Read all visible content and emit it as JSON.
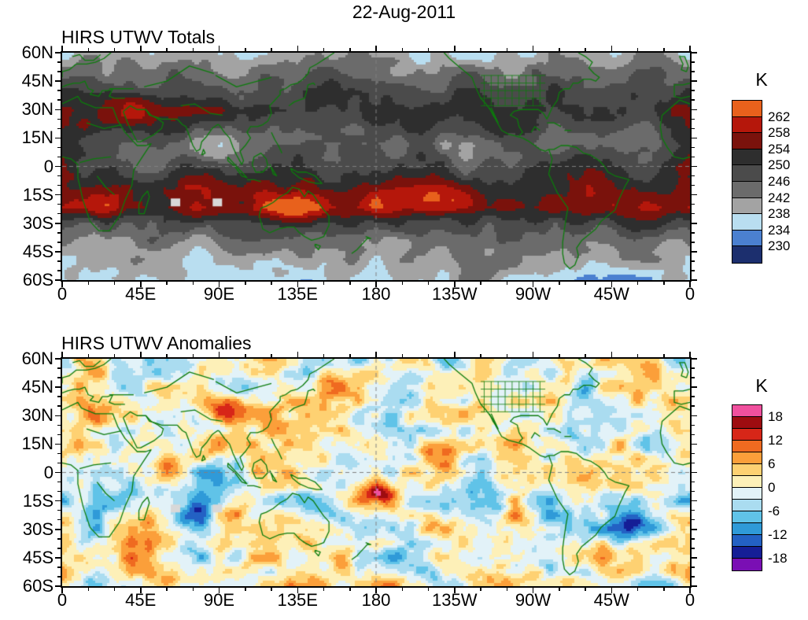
{
  "figure": {
    "date_title": "22-Aug-2011"
  },
  "map_style": {
    "coastline_color": "#0c7c0c",
    "refline_color": "#808080",
    "missing_color": "#d8d8d8",
    "frame_color": "#000000",
    "background": "#ffffff",
    "text_color": "#000000"
  },
  "chart_data": [
    {
      "type": "heatmap",
      "title": "HIRS UTWV Totals",
      "units": "K",
      "x_tick_labels": [
        "0",
        "45E",
        "90E",
        "135E",
        "180",
        "135W",
        "90W",
        "45W",
        "0"
      ],
      "y_tick_labels": [
        "60N",
        "45N",
        "30N",
        "15N",
        "0",
        "15S",
        "30S",
        "45S",
        "60S"
      ],
      "lon_range_deg_east": [
        0,
        360
      ],
      "lat_range": [
        60,
        -60
      ],
      "quant_levels_desc": [
        262,
        258,
        254,
        250,
        246,
        242,
        238,
        234,
        230
      ],
      "colorbar": {
        "label": "K",
        "tick_labels": [
          "262",
          "258",
          "254",
          "250",
          "246",
          "242",
          "238",
          "234",
          "230"
        ],
        "tick_boundary_indices": [
          1,
          2,
          3,
          4,
          5,
          6,
          7,
          8,
          9
        ],
        "box_colors_top_to_bottom": [
          "#e8611c",
          "#b5170b",
          "#7a120c",
          "#2e2e2e",
          "#4b4b4b",
          "#6b6b6b",
          "#a3a3a3",
          "#b9def0",
          "#4b80d0",
          "#1c2f6e"
        ]
      },
      "reference_lines": {
        "equator_lat": 0,
        "dateline_lon": 180,
        "style": "dashed"
      },
      "missing_data_cells_lonlat": [
        [
          65,
          -19
        ],
        [
          89,
          -19
        ]
      ],
      "field_summary": "Mid-range gray brightness temperatures dominate; warm red/orange bands (>254 K) over North Africa / Middle East near 30N and across the southern subtropics near 15S-25S including Australia; cool blue patches (<238 K) at high latitudes and scattered in the tropics."
    },
    {
      "type": "heatmap",
      "title": "HIRS UTWV Anomalies",
      "units": "K",
      "x_tick_labels": [
        "0",
        "45E",
        "90E",
        "135E",
        "180",
        "135W",
        "90W",
        "45W",
        "0"
      ],
      "y_tick_labels": [
        "60N",
        "45N",
        "30N",
        "15N",
        "0",
        "15S",
        "30S",
        "45S",
        "60S"
      ],
      "lon_range_deg_east": [
        0,
        360
      ],
      "lat_range": [
        60,
        -60
      ],
      "quant_levels_desc": [
        18,
        15,
        12,
        9,
        6,
        3,
        0,
        -3,
        -6,
        -9,
        -12,
        -15,
        -18
      ],
      "colorbar": {
        "label": "K",
        "tick_labels": [
          "18",
          "12",
          "6",
          "0",
          "-6",
          "-12",
          "-18"
        ],
        "tick_boundary_indices": [
          1,
          3,
          5,
          7,
          9,
          11,
          13
        ],
        "box_colors_top_to_bottom": [
          "#f0509e",
          "#9e0c10",
          "#d72618",
          "#ef6a20",
          "#fb9f3a",
          "#fed172",
          "#fdf0b8",
          "#e2f2f8",
          "#aadcf0",
          "#60c3e8",
          "#2f9ad8",
          "#2361c4",
          "#151e96",
          "#7a0fb4"
        ]
      },
      "reference_lines": {
        "equator_lat": 0,
        "dateline_lon": 180,
        "style": "dashed"
      },
      "missing_data_cells_lonlat": [
        [
          65,
          -19
        ],
        [
          89,
          -19
        ]
      ],
      "field_summary": "Mottled positive (yellow/orange/red) and negative (cyan/blue) anomalies worldwide; strongest positive anomaly (>18 K, pink) near the dateline around 10S-15S; strong negative anomalies (<-12 K, navy/purple) south of Australia, in the South Pacific and South Atlantic."
    }
  ]
}
